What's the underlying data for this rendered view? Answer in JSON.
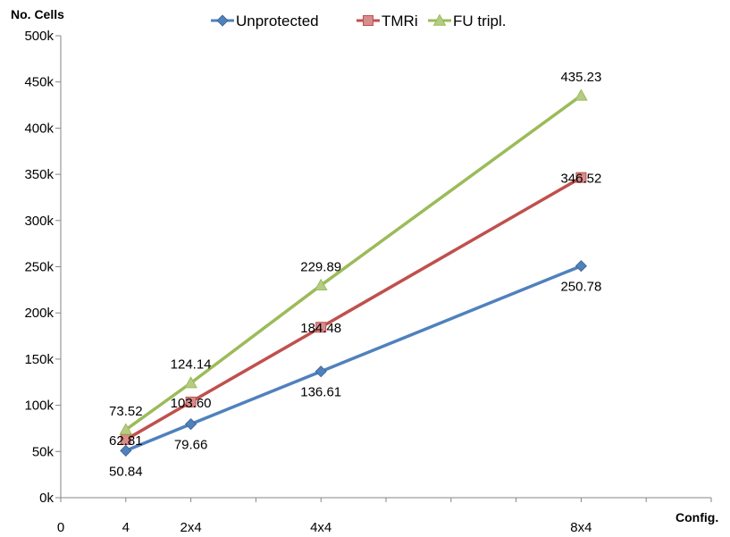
{
  "chart_data": {
    "type": "line",
    "title": "",
    "ylabel": "No. Cells",
    "xlabel": "Config.",
    "ylim": [
      0,
      500000
    ],
    "yticks": [
      0,
      50000,
      100000,
      150000,
      200000,
      250000,
      300000,
      350000,
      400000,
      450000,
      500000
    ],
    "ytick_labels": [
      "0k",
      "50k",
      "100k",
      "150k",
      "200k",
      "250k",
      "300k",
      "350k",
      "400k",
      "450k",
      "500k"
    ],
    "xlim": [
      0,
      40
    ],
    "x": [
      4,
      8,
      16,
      32
    ],
    "xtick_labels": [
      {
        "x": 0,
        "label": "0"
      },
      {
        "x": 4,
        "label": "4"
      },
      {
        "x": 8,
        "label": "2x4"
      },
      {
        "x": 16,
        "label": "4x4"
      },
      {
        "x": 32,
        "label": "8x4"
      }
    ],
    "grid": false,
    "legend": "top",
    "series": [
      {
        "name": "Unprotected",
        "color": "#4F81BD",
        "marker": "diamond",
        "values": [
          50840,
          79660,
          136610,
          250780
        ],
        "labels": [
          "50.84",
          "79.66",
          "136.61",
          "250.78"
        ],
        "label_pos": "below"
      },
      {
        "name": "TMRi",
        "color": "#C0504D",
        "marker": "square",
        "values": [
          62810,
          103600,
          184480,
          346520
        ],
        "labels": [
          "62.81",
          "103.60",
          "184.48",
          "346.52"
        ],
        "label_pos": "center"
      },
      {
        "name": "FU tripl.",
        "color": "#9BBB59",
        "marker": "triangle",
        "values": [
          73520,
          124140,
          229890,
          435230
        ],
        "labels": [
          "73.52",
          "124.14",
          "229.89",
          "435.23"
        ],
        "label_pos": "above"
      }
    ]
  }
}
